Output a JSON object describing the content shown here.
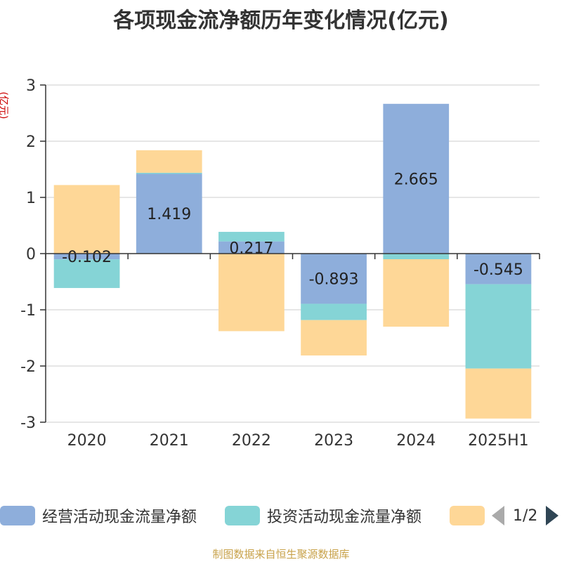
{
  "title": "各项现金流净额历年变化情况(亿元)",
  "unit_label": "(亿元)",
  "legend": {
    "items": [
      {
        "label": "经营活动现金流量净额",
        "color": "#8eaedb"
      },
      {
        "label": "投资活动现金流量净额",
        "color": "#85d4d6"
      },
      {
        "label": "",
        "color": "#fed797"
      }
    ],
    "page": "1/2"
  },
  "source": "制图数据来自恒生聚源数据库",
  "chart_data": {
    "type": "bar",
    "stacked": true,
    "categories": [
      "2020",
      "2021",
      "2022",
      "2023",
      "2024",
      "2025H1"
    ],
    "ylim": [
      -3,
      3
    ],
    "yticks": [
      3,
      2,
      1,
      0,
      -1,
      -2,
      -3
    ],
    "grid": true,
    "legend_position": "bottom",
    "series": [
      {
        "name": "经营活动现金流量净额",
        "color": "#8eaedb",
        "show_labels": true,
        "values": [
          -0.102,
          1.419,
          0.217,
          -0.893,
          2.665,
          -0.545
        ]
      },
      {
        "name": "投资活动现金流量净额",
        "color": "#85d4d6",
        "show_labels": false,
        "values": [
          -0.51,
          0.02,
          0.17,
          -0.29,
          -0.1,
          -1.5
        ]
      },
      {
        "color": "#fed797",
        "show_labels": false,
        "values": [
          1.22,
          0.4,
          -1.38,
          -0.63,
          -1.2,
          -0.89
        ]
      }
    ]
  }
}
